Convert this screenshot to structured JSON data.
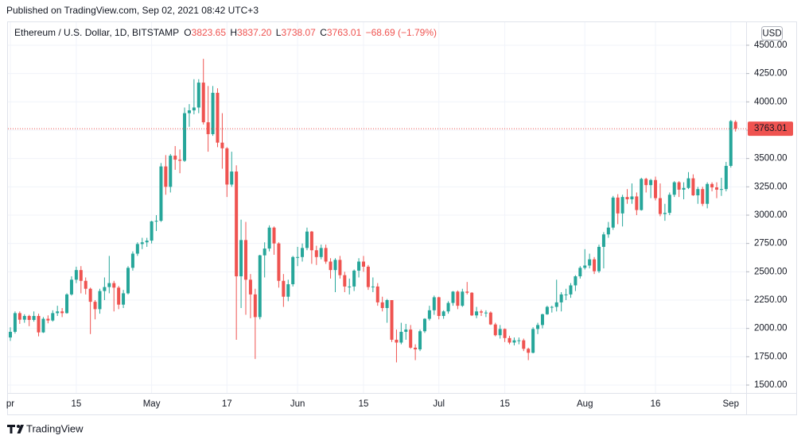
{
  "published": "Published on TradingView.com, Sep 02, 2021 08:42 UTC+3",
  "brand": "TradingView",
  "header": {
    "symbol": "Ethereum / U.S. Dollar, 1D, BITSTAMP",
    "fields": [
      {
        "letter": "O",
        "value": "3823.65"
      },
      {
        "letter": "H",
        "value": "3837.20"
      },
      {
        "letter": "L",
        "value": "3738.07"
      },
      {
        "letter": "C",
        "value": "3763.01"
      }
    ],
    "change": "−68.69 (−1.79%)"
  },
  "chart_data": {
    "type": "candlestick",
    "currency": "USD",
    "up_color": "#26a69a",
    "down_color": "#ef5350",
    "grid": true,
    "ylim": [
      1430,
      4703
    ],
    "yticks": [
      {
        "value": 1500,
        "label": "1500.00"
      },
      {
        "value": 1750,
        "label": "1750.00"
      },
      {
        "value": 2000,
        "label": "2000.00"
      },
      {
        "value": 2250,
        "label": "2250.00"
      },
      {
        "value": 2500,
        "label": "2500.00"
      },
      {
        "value": 2750,
        "label": "2750.00"
      },
      {
        "value": 3000,
        "label": "3000.00"
      },
      {
        "value": 3250,
        "label": "3250.00"
      },
      {
        "value": 3500,
        "label": "3500.00"
      },
      {
        "value": 3750,
        "label": "3750.00"
      },
      {
        "value": 4000,
        "label": "4000.00"
      },
      {
        "value": 4250,
        "label": "4250.00"
      },
      {
        "value": 4500,
        "label": "4500.00"
      }
    ],
    "categories": [
      "pr",
      null,
      null,
      null,
      null,
      null,
      null,
      null,
      null,
      null,
      null,
      null,
      null,
      null,
      "15",
      null,
      null,
      null,
      null,
      null,
      null,
      null,
      null,
      null,
      null,
      null,
      null,
      null,
      null,
      null,
      "May",
      null,
      null,
      null,
      null,
      null,
      null,
      null,
      null,
      null,
      null,
      null,
      null,
      null,
      null,
      null,
      "17",
      null,
      null,
      null,
      null,
      null,
      null,
      null,
      null,
      null,
      null,
      null,
      null,
      null,
      null,
      "Jun",
      null,
      null,
      null,
      null,
      null,
      null,
      null,
      null,
      null,
      null,
      null,
      null,
      null,
      "15",
      null,
      null,
      null,
      null,
      null,
      null,
      null,
      null,
      null,
      null,
      null,
      null,
      null,
      null,
      null,
      "Jul",
      null,
      null,
      null,
      null,
      null,
      null,
      null,
      null,
      null,
      null,
      null,
      null,
      null,
      "15",
      null,
      null,
      null,
      null,
      null,
      null,
      null,
      null,
      null,
      null,
      null,
      null,
      null,
      null,
      null,
      null,
      "Aug",
      null,
      null,
      null,
      null,
      null,
      null,
      null,
      null,
      null,
      null,
      null,
      null,
      null,
      null,
      "16",
      null,
      null,
      null,
      null,
      null,
      null,
      null,
      null,
      null,
      null,
      null,
      null,
      null,
      null,
      null,
      "Sep",
      null
    ],
    "open": [
      1920,
      1970,
      2135,
      2077,
      2110,
      2075,
      2110,
      1965,
      2085,
      2070,
      2135,
      2150,
      2135,
      2300,
      2430,
      2515,
      2420,
      2350,
      2235,
      2170,
      2330,
      2365,
      2400,
      2360,
      2210,
      2310,
      2535,
      2660,
      2745,
      2760,
      2775,
      2945,
      2950,
      3430,
      3250,
      3525,
      3490,
      3480,
      3900,
      3925,
      3950,
      4170,
      3820,
      3715,
      4080,
      3640,
      3590,
      3270,
      3385,
      2460,
      2780,
      2430,
      2300,
      2100,
      2645,
      2705,
      2890,
      2750,
      2420,
      2280,
      2390,
      2630,
      2630,
      2710,
      2855,
      2690,
      2630,
      2710,
      2590,
      2515,
      2605,
      2470,
      2370,
      2370,
      2510,
      2590,
      2545,
      2365,
      2370,
      2230,
      2180,
      2250,
      1900,
      1875,
      1970,
      1990,
      1830,
      1815,
      1975,
      2085,
      2160,
      2275,
      2110,
      2150,
      2225,
      2325,
      2200,
      2325,
      2315,
      2115,
      2150,
      2140,
      2140,
      2035,
      1940,
      1995,
      1915,
      1875,
      1895,
      1895,
      1820,
      1785,
      1995,
      2030,
      2125,
      2190,
      2190,
      2230,
      2300,
      2300,
      2380,
      2460,
      2535,
      2555,
      2610,
      2505,
      2720,
      2830,
      2890,
      3155,
      3015,
      3160,
      3140,
      3165,
      3045,
      3320,
      3265,
      3310,
      3150,
      3010,
      3020,
      3180,
      3290,
      3225,
      3240,
      3325,
      3175,
      3230,
      3100,
      3275,
      3245,
      3225,
      3230,
      3435,
      3823.65
    ],
    "high": [
      2010,
      2150,
      2150,
      2125,
      2120,
      2150,
      2130,
      2100,
      2115,
      2160,
      2200,
      2180,
      2310,
      2460,
      2545,
      2550,
      2450,
      2360,
      2250,
      2350,
      2450,
      2640,
      2420,
      2375,
      2340,
      2550,
      2680,
      2760,
      2800,
      2800,
      2950,
      3000,
      3460,
      3530,
      3540,
      3610,
      3580,
      3950,
      3980,
      4200,
      4200,
      4380,
      4140,
      4140,
      4120,
      3900,
      3600,
      3560,
      3440,
      2960,
      2940,
      2480,
      2350,
      2650,
      2760,
      2910,
      2900,
      2760,
      2480,
      2430,
      2640,
      2720,
      2750,
      2890,
      2860,
      2730,
      2740,
      2740,
      2620,
      2620,
      2640,
      2500,
      2440,
      2520,
      2620,
      2640,
      2560,
      2450,
      2400,
      2280,
      2260,
      2250,
      1990,
      2050,
      2040,
      2030,
      1860,
      1990,
      2090,
      2200,
      2290,
      2280,
      2160,
      2240,
      2330,
      2335,
      2350,
      2410,
      2320,
      2190,
      2165,
      2160,
      2150,
      2050,
      2030,
      2000,
      1935,
      1920,
      1920,
      1910,
      1830,
      2010,
      2050,
      2130,
      2200,
      2200,
      2430,
      2320,
      2350,
      2400,
      2470,
      2550,
      2700,
      2660,
      2630,
      2740,
      2850,
      2940,
      3170,
      3185,
      3180,
      3230,
      3280,
      3200,
      3330,
      3330,
      3320,
      3340,
      3280,
      3100,
      3200,
      3300,
      3300,
      3290,
      3380,
      3360,
      3250,
      3250,
      3290,
      3290,
      3290,
      3330,
      3470,
      3840,
      3837.2
    ],
    "low": [
      1890,
      1955,
      2040,
      2050,
      2020,
      2060,
      1930,
      1960,
      2045,
      2060,
      2110,
      2100,
      2130,
      2290,
      2400,
      2310,
      2300,
      1950,
      2080,
      2130,
      2250,
      2310,
      2150,
      2170,
      2180,
      2300,
      2510,
      2640,
      2700,
      2720,
      2750,
      2860,
      2940,
      3180,
      3200,
      3400,
      3370,
      3470,
      3780,
      3890,
      3900,
      3800,
      3560,
      3700,
      3600,
      3410,
      3160,
      3250,
      1900,
      2180,
      2120,
      2090,
      1730,
      2080,
      2450,
      2680,
      2650,
      2360,
      2190,
      2240,
      2370,
      2550,
      2590,
      2690,
      2570,
      2560,
      2610,
      2570,
      2440,
      2320,
      2440,
      2320,
      2300,
      2330,
      2450,
      2500,
      2340,
      2320,
      2200,
      2150,
      2050,
      1880,
      1700,
      1860,
      1900,
      1820,
      1720,
      1800,
      1960,
      2070,
      2120,
      2080,
      2085,
      2130,
      2200,
      2170,
      2190,
      2300,
      2110,
      2090,
      2110,
      2100,
      2030,
      1930,
      1910,
      1880,
      1860,
      1850,
      1860,
      1800,
      1720,
      1780,
      1950,
      2000,
      2120,
      2140,
      2150,
      2150,
      2250,
      2270,
      2330,
      2440,
      2520,
      2530,
      2480,
      2490,
      2530,
      2800,
      2870,
      2920,
      2900,
      3100,
      3100,
      3000,
      3040,
      3200,
      3150,
      3130,
      2990,
      2950,
      3000,
      3160,
      3160,
      3140,
      3230,
      3170,
      3100,
      3080,
      3060,
      3210,
      3150,
      3170,
      3210,
      3420,
      3738.07
    ],
    "close": [
      1970,
      2135,
      2077,
      2110,
      2075,
      2110,
      1965,
      2085,
      2070,
      2135,
      2150,
      2135,
      2300,
      2430,
      2515,
      2420,
      2350,
      2235,
      2170,
      2330,
      2365,
      2400,
      2360,
      2210,
      2310,
      2535,
      2660,
      2745,
      2760,
      2775,
      2945,
      2950,
      3430,
      3250,
      3525,
      3490,
      3480,
      3900,
      3925,
      3950,
      4170,
      3820,
      3715,
      4080,
      3640,
      3590,
      3270,
      3385,
      2460,
      2780,
      2430,
      2300,
      2100,
      2645,
      2705,
      2890,
      2750,
      2420,
      2280,
      2390,
      2630,
      2630,
      2710,
      2855,
      2690,
      2630,
      2710,
      2590,
      2515,
      2605,
      2470,
      2370,
      2370,
      2510,
      2590,
      2545,
      2365,
      2370,
      2230,
      2180,
      2250,
      1900,
      1875,
      1970,
      1990,
      1830,
      1815,
      1975,
      2085,
      2160,
      2275,
      2110,
      2150,
      2225,
      2325,
      2200,
      2325,
      2315,
      2115,
      2150,
      2140,
      2140,
      2035,
      1940,
      1995,
      1915,
      1875,
      1895,
      1895,
      1820,
      1785,
      1995,
      2030,
      2125,
      2190,
      2190,
      2230,
      2300,
      2300,
      2380,
      2460,
      2535,
      2555,
      2610,
      2505,
      2720,
      2830,
      2890,
      3155,
      3015,
      3160,
      3140,
      3165,
      3045,
      3320,
      3265,
      3310,
      3150,
      3010,
      3020,
      3180,
      3290,
      3225,
      3240,
      3325,
      3175,
      3230,
      3100,
      3275,
      3245,
      3225,
      3230,
      3435,
      3830,
      3763.01
    ]
  }
}
